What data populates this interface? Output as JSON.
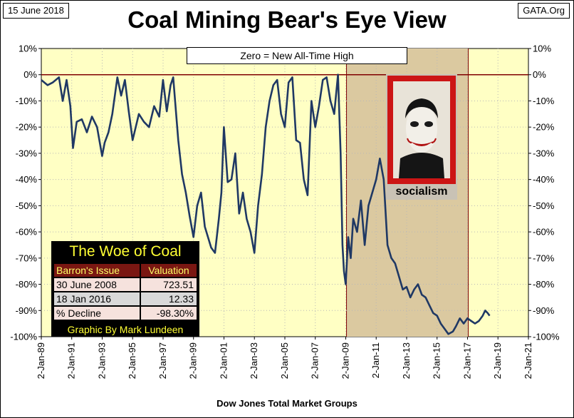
{
  "header": {
    "date": "15 June 2018",
    "source": "GATA.Org",
    "title": "Coal Mining Bear's Eye View"
  },
  "chart_data": {
    "type": "line",
    "title": "Coal Mining Bear's Eye View",
    "xlabel": "Dow Jones Total Market Groups",
    "ylabel": "",
    "annotation": "Zero = New All-Time High",
    "ylim": [
      -100,
      10
    ],
    "xlim": [
      "1989-01-02",
      "2021-01-02"
    ],
    "y_ticks": [
      "10%",
      "0%",
      "-10%",
      "-20%",
      "-30%",
      "-40%",
      "-50%",
      "-60%",
      "-70%",
      "-80%",
      "-90%",
      "-100%"
    ],
    "x_ticks": [
      "2-Jan-89",
      "2-Jan-91",
      "2-Jan-93",
      "2-Jan-95",
      "2-Jan-97",
      "2-Jan-99",
      "2-Jan-01",
      "2-Jan-03",
      "2-Jan-05",
      "2-Jan-07",
      "2-Jan-09",
      "2-Jan-11",
      "2-Jan-13",
      "2-Jan-15",
      "2-Jan-17",
      "2-Jan-19",
      "2-Jan-21"
    ],
    "shaded_region": [
      "2009-01-20",
      "2017-01-20"
    ],
    "series": [
      {
        "x": [
          "1989-01-02",
          "1989-06-01",
          "1989-10-01",
          "1990-03-01",
          "1990-06-01",
          "1990-09-01",
          "1990-12-01",
          "1991-02-01",
          "1991-05-01",
          "1991-09-01",
          "1992-01-01",
          "1992-05-01",
          "1992-09-01",
          "1993-01-01",
          "1993-03-01",
          "1993-06-01",
          "1993-09-01",
          "1994-01-01",
          "1994-04-01",
          "1994-07-01",
          "1994-10-01",
          "1995-01-01",
          "1995-06-01",
          "1995-10-01",
          "1996-02-01",
          "1996-06-01",
          "1996-10-01",
          "1997-01-01",
          "1997-04-01",
          "1997-07-01",
          "1997-09-01",
          "1998-01-01",
          "1998-04-01",
          "1998-07-01",
          "1998-10-01",
          "1999-01-01",
          "1999-04-01",
          "1999-07-01",
          "1999-10-01",
          "2000-03-01",
          "2000-06-01",
          "2000-09-01",
          "2000-11-01",
          "2001-01-01",
          "2001-04-01",
          "2001-07-01",
          "2001-10-01",
          "2002-01-01",
          "2002-04-01",
          "2002-07-01",
          "2002-10-01",
          "2003-01-01",
          "2003-04-01",
          "2003-07-01",
          "2003-10-01",
          "2004-01-01",
          "2004-04-01",
          "2004-07-01",
          "2004-10-01",
          "2005-01-01",
          "2005-04-01",
          "2005-07-01",
          "2005-10-01",
          "2006-01-01",
          "2006-04-01",
          "2006-07-01",
          "2006-10-01",
          "2007-01-01",
          "2007-04-01",
          "2007-07-01",
          "2007-10-01",
          "2008-01-01",
          "2008-04-01",
          "2008-06-30",
          "2008-09-01",
          "2008-10-15",
          "2008-11-20",
          "2009-01-01",
          "2009-03-01",
          "2009-05-01",
          "2009-07-01",
          "2009-10-01",
          "2010-01-01",
          "2010-04-01",
          "2010-07-01",
          "2010-10-01",
          "2011-01-01",
          "2011-04-01",
          "2011-07-01",
          "2011-10-01",
          "2012-01-01",
          "2012-04-01",
          "2012-07-01",
          "2012-10-01",
          "2013-01-01",
          "2013-04-01",
          "2013-07-01",
          "2013-10-01",
          "2014-01-01",
          "2014-04-01",
          "2014-07-01",
          "2014-10-01",
          "2015-01-01",
          "2015-04-01",
          "2015-07-01",
          "2015-10-01",
          "2016-01-18",
          "2016-04-01",
          "2016-07-01",
          "2016-10-01",
          "2017-01-01",
          "2017-04-01",
          "2017-07-01",
          "2017-10-01",
          "2018-01-01",
          "2018-03-01",
          "2018-05-01",
          "2018-06-15"
        ],
        "y": [
          -2,
          -4,
          -3,
          -1,
          -10,
          -2,
          -12,
          -28,
          -18,
          -17,
          -22,
          -16,
          -20,
          -31,
          -26,
          -22,
          -15,
          -1,
          -8,
          -2,
          -14,
          -25,
          -15,
          -18,
          -20,
          -12,
          -16,
          -2,
          -14,
          -4,
          -1,
          -25,
          -38,
          -45,
          -54,
          -62,
          -50,
          -45,
          -58,
          -66,
          -68,
          -55,
          -45,
          -20,
          -41,
          -40,
          -30,
          -53,
          -45,
          -55,
          -60,
          -68,
          -50,
          -38,
          -20,
          -10,
          -4,
          -2,
          -15,
          -20,
          -3,
          -1,
          -25,
          -26,
          -40,
          -46,
          -10,
          -20,
          -12,
          -2,
          -1,
          -10,
          -15,
          0,
          -30,
          -65,
          -75,
          -80,
          -62,
          -70,
          -55,
          -60,
          -48,
          -65,
          -50,
          -45,
          -40,
          -32,
          -40,
          -65,
          -70,
          -72,
          -77,
          -82,
          -81,
          -85,
          -82,
          -80,
          -84,
          -85,
          -88,
          -91,
          -92,
          -95,
          -97,
          -99,
          -98,
          -96,
          -93,
          -95,
          -93,
          -94,
          -95,
          -94,
          -92,
          -90,
          -91,
          -92
        ]
      }
    ]
  },
  "woe_table": {
    "title": "The Woe of Coal",
    "headers": [
      "Barron's Issue",
      "Valuation"
    ],
    "rows": [
      {
        "label": "30 June 2008",
        "value": "723.51"
      },
      {
        "label": "18 Jan 2016",
        "value": "12.33"
      },
      {
        "label": "% Decline",
        "value": "-98.30%"
      }
    ],
    "credit": "Graphic By Mark Lundeen"
  },
  "poster": {
    "caption": "socialism"
  },
  "colors": {
    "plot_bg": "#ffffc4",
    "shade": "#dbc9a0",
    "line": "#1f3864",
    "zero_line": "#800000"
  }
}
